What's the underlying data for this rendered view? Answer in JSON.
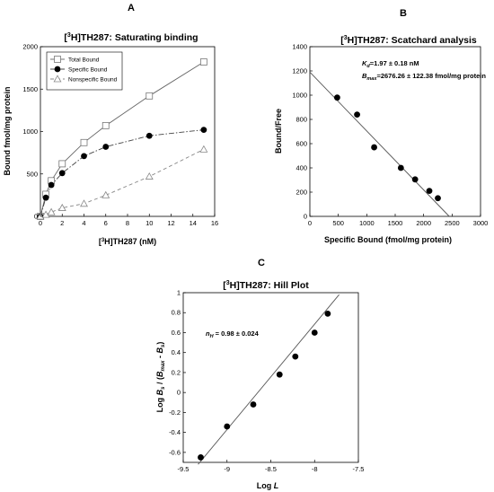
{
  "panel_letters": [
    "A",
    "B",
    "C"
  ],
  "chart_data": [
    {
      "panel": "A",
      "type": "scatter",
      "title_prefix": "[",
      "title_sup": "3",
      "title_suffix": "H]TH287: Saturating binding",
      "xlabel_prefix": "[",
      "xlabel_sup": "3",
      "xlabel_suffix": "H]TH287 (nM)",
      "ylabel": "Bound fmol/mg protein",
      "xlim": [
        0,
        16
      ],
      "ylim": [
        0,
        2000
      ],
      "xticks": [
        "0",
        "2",
        "4",
        "6",
        "8",
        "10",
        "12",
        "14",
        "16"
      ],
      "yticks": [
        "0",
        "500",
        "1000",
        "1500",
        "2000"
      ],
      "legend_position": "top-left",
      "series": [
        {
          "name": "Total Bound",
          "marker": "square",
          "line": "solid",
          "x": [
            0,
            0.5,
            1,
            2,
            4,
            6,
            10,
            15
          ],
          "y": [
            0,
            260,
            420,
            620,
            870,
            1070,
            1420,
            1820
          ]
        },
        {
          "name": "Specific Bound",
          "marker": "circle",
          "line": "dashdot",
          "x": [
            0,
            0.5,
            1,
            2,
            4,
            6,
            10,
            15
          ],
          "y": [
            0,
            220,
            370,
            510,
            710,
            820,
            950,
            1020
          ]
        },
        {
          "name": "Nonspecific Bound",
          "marker": "triangle",
          "line": "dashed",
          "x": [
            0,
            0.5,
            1,
            2,
            4,
            6,
            10,
            15
          ],
          "y": [
            0,
            20,
            50,
            100,
            150,
            250,
            470,
            790
          ]
        }
      ]
    },
    {
      "panel": "B",
      "type": "scatter",
      "title_prefix": "[",
      "title_sup": "3",
      "title_suffix": "H]TH287: Scatchard analysis",
      "xlabel": "Specific Bound (fmol/mg protein)",
      "ylabel": "Bound/Free",
      "xlim": [
        0,
        3000
      ],
      "ylim": [
        0,
        1400
      ],
      "xticks": [
        "0",
        "500",
        "1000",
        "1500",
        "2000",
        "2500",
        "3000"
      ],
      "yticks": [
        "0",
        "200",
        "400",
        "600",
        "800",
        "1000",
        "1200",
        "1400"
      ],
      "annotation_kd_symbol": "K",
      "annotation_kd_sub": "d",
      "annotation_kd_value": "=1.97 ± 0.18 nM",
      "annotation_bmax_symbol": "B",
      "annotation_bmax_sub": "max",
      "annotation_bmax_value": "=2676.26 ± 122.38 fmol/mg protein",
      "points": {
        "x": [
          480,
          830,
          1130,
          1600,
          1850,
          2100,
          2250
        ],
        "y": [
          980,
          840,
          570,
          400,
          305,
          210,
          150
        ]
      },
      "fit_line": {
        "x": [
          0,
          2450
        ],
        "y": [
          1190,
          0
        ]
      }
    },
    {
      "panel": "C",
      "type": "scatter",
      "title_prefix": "[",
      "title_sup": "3",
      "title_suffix": "H]TH287: Hill Plot",
      "xlabel_text": "Log ",
      "xlabel_italic": "L",
      "ylabel_text": "Log B_s / (B_max - B_s)",
      "xlim": [
        -9.5,
        -7.5
      ],
      "ylim": [
        -0.7,
        1
      ],
      "xticks": [
        "-9.5",
        "-9",
        "-8.5",
        "-8",
        "-7.5"
      ],
      "yticks": [
        "-0.6",
        "-0.4",
        "-0.2",
        "0",
        "0.2",
        "0.4",
        "0.6",
        "0.8",
        "1"
      ],
      "annotation_nh_symbol": "n",
      "annotation_nh_sub": "H",
      "annotation_nh_value": " = 0.98 ± 0.024",
      "points": {
        "x": [
          -9.3,
          -9.0,
          -8.7,
          -8.4,
          -8.22,
          -8.0,
          -7.85
        ],
        "y": [
          -0.65,
          -0.34,
          -0.12,
          0.18,
          0.36,
          0.6,
          0.79
        ]
      },
      "fit_line": {
        "x": [
          -9.33,
          -7.72
        ],
        "y": [
          -0.72,
          0.98
        ]
      }
    }
  ]
}
